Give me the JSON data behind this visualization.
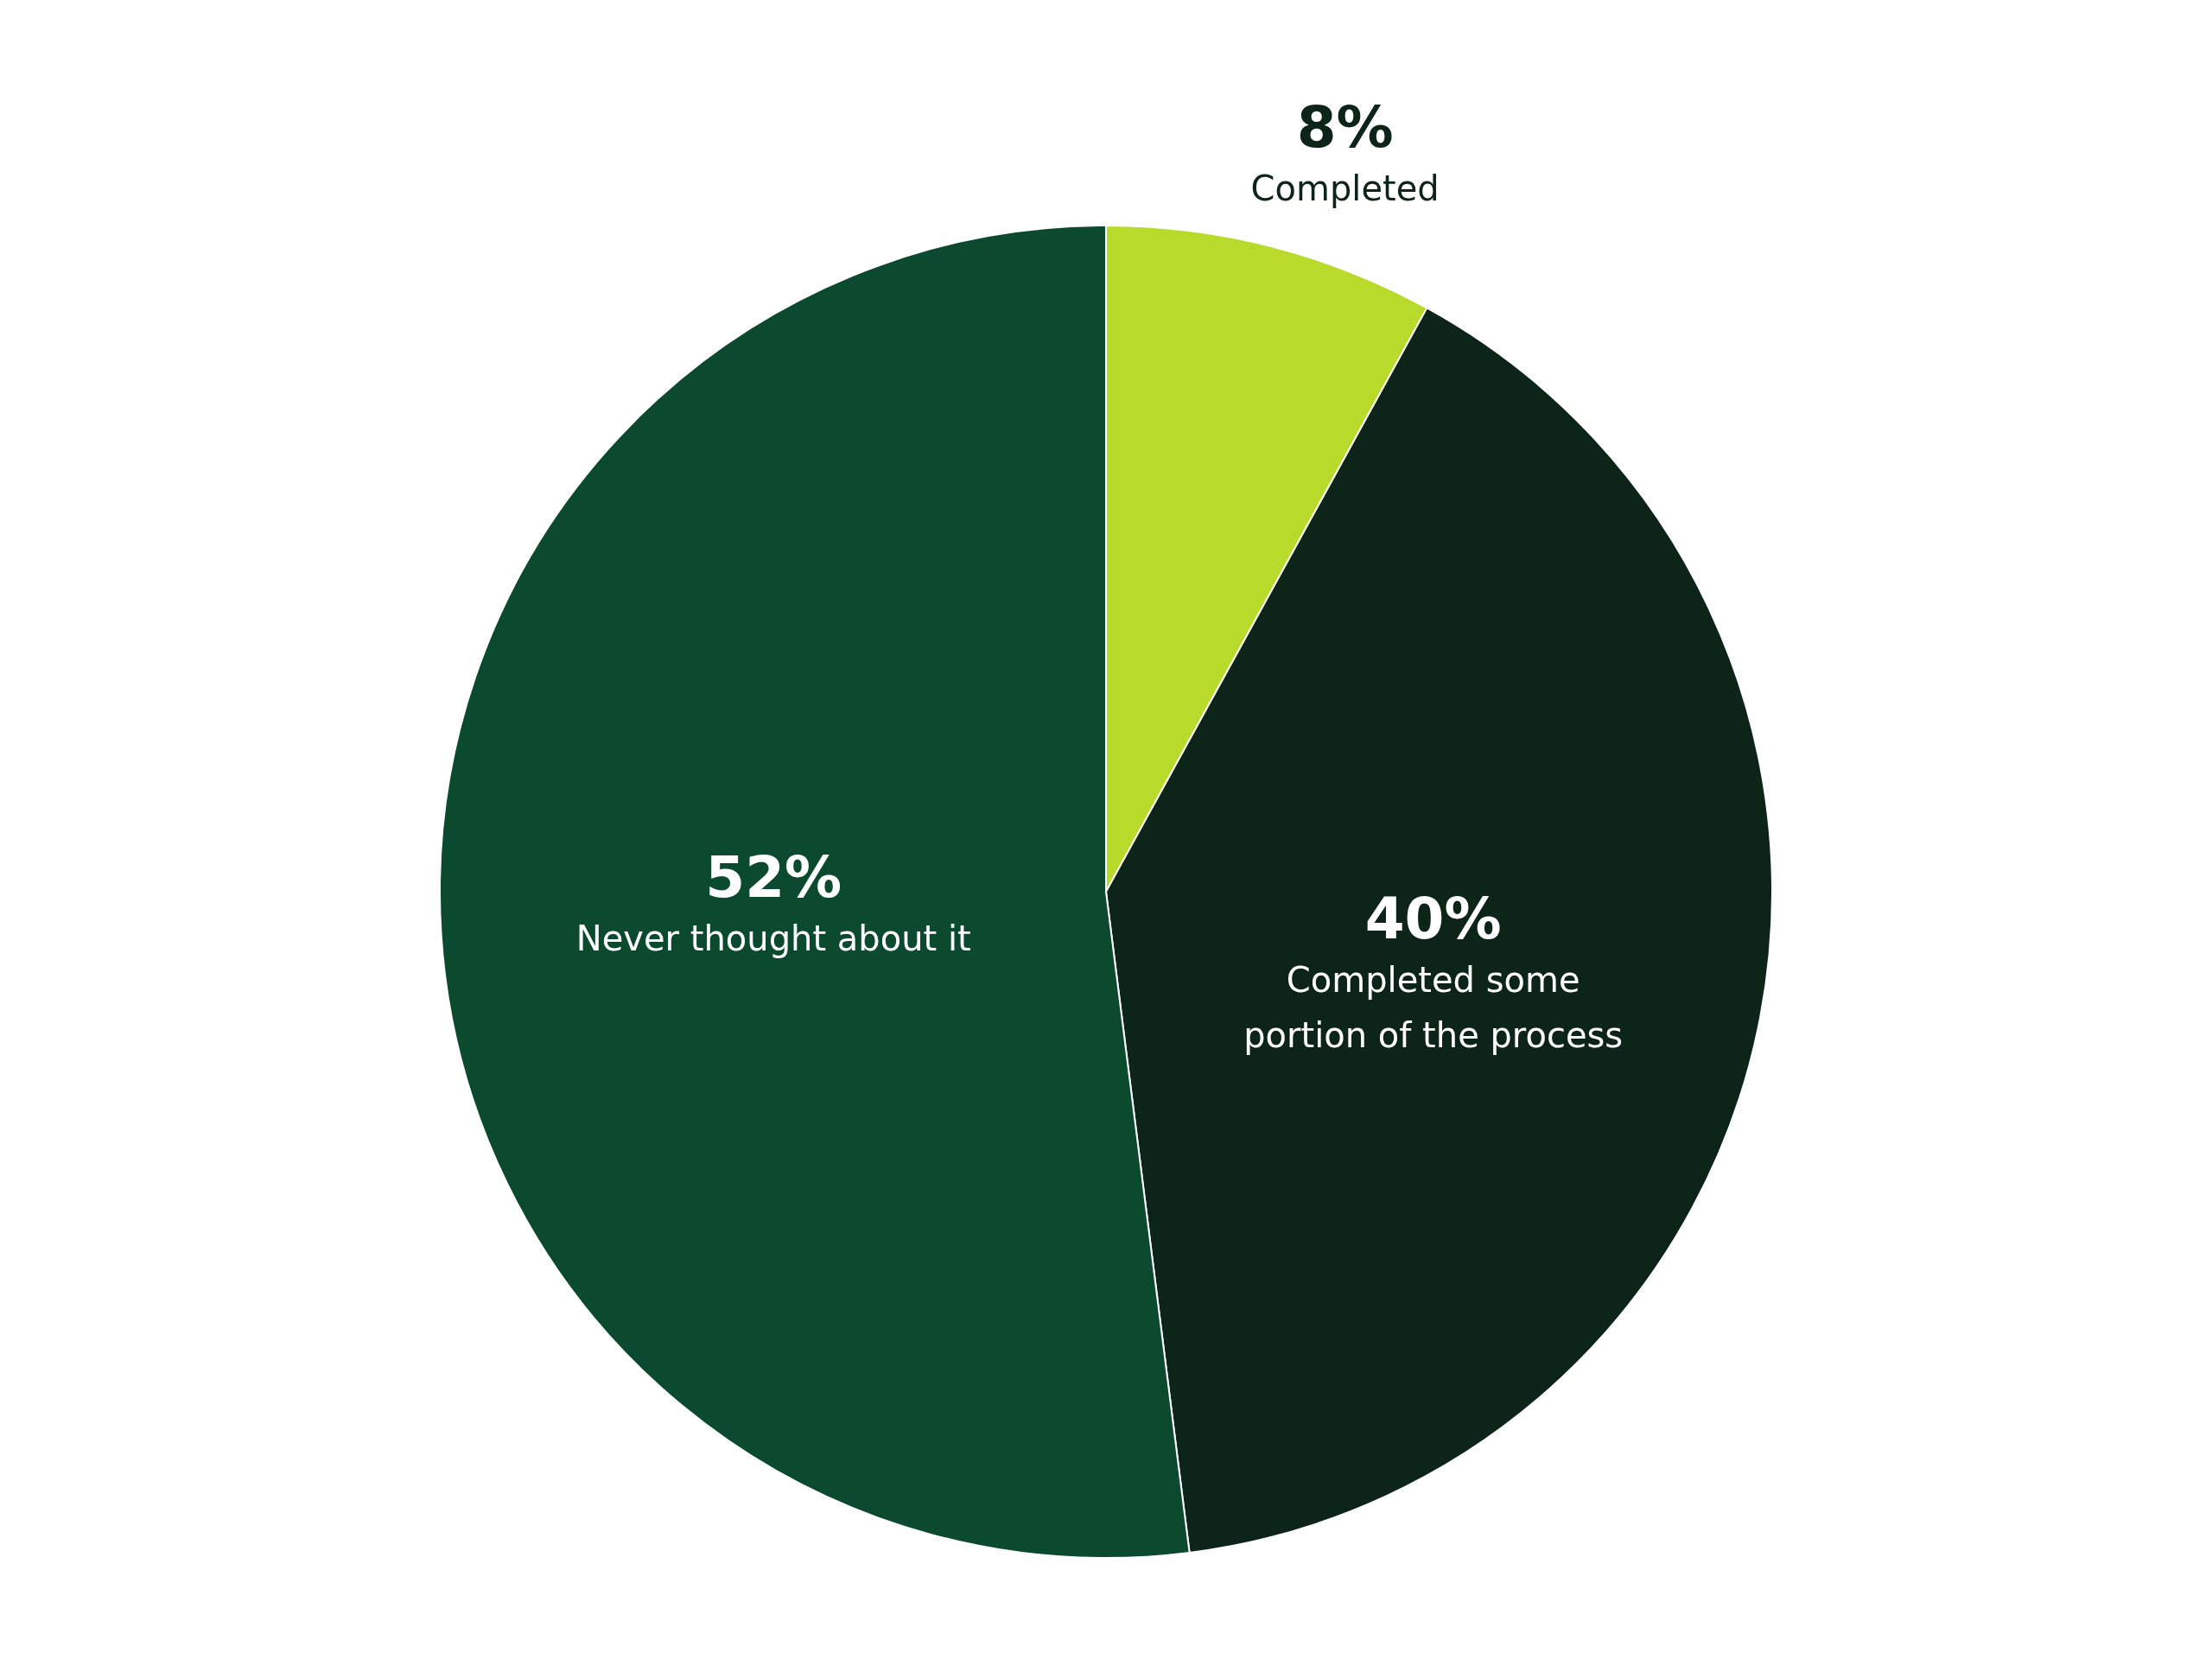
{
  "chart_data": {
    "type": "pie",
    "categories": [
      "Completed",
      "Completed some portion of the process",
      "Never thought about it"
    ],
    "values": [
      8,
      40,
      52
    ],
    "colors": [
      "#b8da2a",
      "#0d2418",
      "#0c4a2f"
    ],
    "value_labels": [
      "8%",
      "40%",
      "52%"
    ]
  }
}
